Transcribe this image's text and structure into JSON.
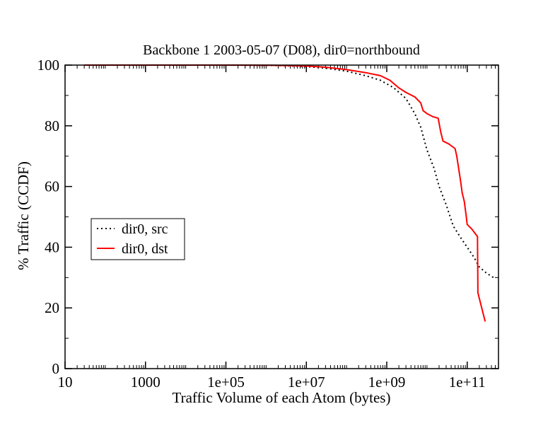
{
  "chart_data": {
    "type": "line",
    "title": "Backbone 1 2003-05-07 (D08), dir0=northbound",
    "xlabel": "Traffic Volume of each Atom (bytes)",
    "ylabel": "% Traffic (CCDF)",
    "xscale": "log",
    "xlim": [
      10,
      600000000000
    ],
    "ylim": [
      0,
      100
    ],
    "xticks": [
      {
        "value": 10,
        "label": "10"
      },
      {
        "value": 1000,
        "label": "1000"
      },
      {
        "value": 100000,
        "label": "1e+05"
      },
      {
        "value": 10000000,
        "label": "1e+07"
      },
      {
        "value": 1000000000,
        "label": "1e+09"
      },
      {
        "value": 100000000000,
        "label": "1e+11"
      }
    ],
    "yticks": [
      {
        "value": 0,
        "label": "0"
      },
      {
        "value": 20,
        "label": "20"
      },
      {
        "value": 40,
        "label": "40"
      },
      {
        "value": 60,
        "label": "60"
      },
      {
        "value": 80,
        "label": "80"
      },
      {
        "value": 100,
        "label": "100"
      }
    ],
    "grid": false,
    "legend_position": "left-middle",
    "series": [
      {
        "name": "dir0, src",
        "color": "#000000",
        "style": "dotted",
        "points": [
          [
            30,
            100
          ],
          [
            1000,
            100
          ],
          [
            100000,
            100
          ],
          [
            1000000,
            99.9
          ],
          [
            3000000,
            99.8
          ],
          [
            10000000,
            99.5
          ],
          [
            30000000,
            99
          ],
          [
            100000000,
            98
          ],
          [
            300000000,
            96.5
          ],
          [
            700000000,
            95
          ],
          [
            1500000000,
            92.5
          ],
          [
            3000000000,
            89
          ],
          [
            5000000000,
            84
          ],
          [
            7000000000,
            79.5
          ],
          [
            10000000000,
            72
          ],
          [
            15000000000,
            66
          ],
          [
            20000000000,
            60
          ],
          [
            30000000000,
            54
          ],
          [
            45000000000,
            47
          ],
          [
            70000000000,
            43
          ],
          [
            100000000000,
            40
          ],
          [
            150000000000,
            36.5
          ],
          [
            200000000000,
            33.5
          ],
          [
            300000000000,
            31.5
          ],
          [
            450000000000,
            30
          ]
        ]
      },
      {
        "name": "dir0, dst",
        "color": "#ff0000",
        "style": "solid",
        "points": [
          [
            30,
            100
          ],
          [
            1000,
            100
          ],
          [
            100000,
            100
          ],
          [
            1000000,
            99.95
          ],
          [
            10000000,
            99.7
          ],
          [
            30000000,
            99.3
          ],
          [
            100000000,
            98.5
          ],
          [
            300000000,
            97.5
          ],
          [
            700000000,
            96.5
          ],
          [
            1200000000,
            95
          ],
          [
            2000000000,
            92.5
          ],
          [
            3000000000,
            91
          ],
          [
            5000000000,
            89.5
          ],
          [
            7000000000,
            87.5
          ],
          [
            8000000000,
            85
          ],
          [
            10000000000,
            84
          ],
          [
            14000000000,
            83
          ],
          [
            19000000000,
            82.5
          ],
          [
            22000000000,
            78
          ],
          [
            25000000000,
            75
          ],
          [
            35000000000,
            74
          ],
          [
            50000000000,
            72.5
          ],
          [
            55000000000,
            70
          ],
          [
            70000000000,
            61
          ],
          [
            75000000000,
            58
          ],
          [
            85000000000,
            55
          ],
          [
            95000000000,
            50
          ],
          [
            100000000000,
            47.5
          ],
          [
            130000000000,
            46
          ],
          [
            180000000000,
            43.5
          ],
          [
            185000000000,
            25
          ],
          [
            220000000000,
            21
          ],
          [
            280000000000,
            15.5
          ]
        ]
      }
    ]
  }
}
